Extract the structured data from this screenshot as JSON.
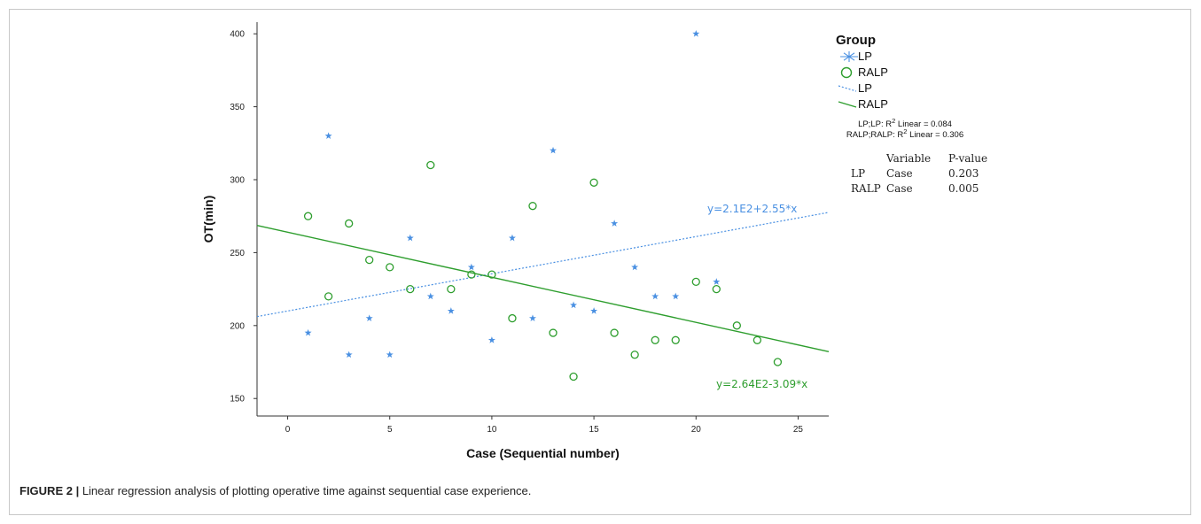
{
  "figure": {
    "caption_label": "FIGURE 2 |",
    "caption_text": " Linear regression analysis of plotting operative time against sequential case experience."
  },
  "chart_data": {
    "type": "scatter",
    "xlabel": "Case (Sequential number)",
    "ylabel": "OT(min)",
    "xlim": [
      -1.5,
      26.5
    ],
    "ylim": [
      138,
      408
    ],
    "xticks": [
      0,
      5,
      10,
      15,
      20,
      25
    ],
    "yticks": [
      150,
      200,
      250,
      300,
      350,
      400
    ],
    "grid": false,
    "legend": {
      "title": "Group",
      "placement": "right",
      "entries": [
        {
          "label": "LP",
          "marker": "star",
          "color": "#4a90e2"
        },
        {
          "label": "RALP",
          "marker": "circle",
          "color": "#2e9e2e"
        },
        {
          "label": "LP",
          "marker": "dotted-line",
          "color": "#4a90e2"
        },
        {
          "label": "RALP",
          "marker": "solid-line",
          "color": "#2e9e2e"
        }
      ]
    },
    "r2_notes": [
      {
        "prefix": "LP;LP: R",
        "sup": "2",
        "suffix": " Linear = 0.084"
      },
      {
        "prefix": "RALP;RALP: R",
        "sup": "2",
        "suffix": " Linear = 0.306"
      }
    ],
    "pvalue_table": {
      "headers": [
        "",
        "Variable",
        "P-value"
      ],
      "rows": [
        [
          "LP",
          "Case",
          "0.203"
        ],
        [
          "RALP",
          "Case",
          "0.005"
        ]
      ]
    },
    "series": [
      {
        "name": "LP",
        "marker": "star",
        "color": "#4a90e2",
        "points": [
          [
            1,
            195
          ],
          [
            2,
            330
          ],
          [
            3,
            180
          ],
          [
            4,
            205
          ],
          [
            5,
            180
          ],
          [
            6,
            260
          ],
          [
            7,
            220
          ],
          [
            8,
            210
          ],
          [
            9,
            240
          ],
          [
            10,
            190
          ],
          [
            11,
            260
          ],
          [
            12,
            205
          ],
          [
            13,
            320
          ],
          [
            14,
            214
          ],
          [
            15,
            210
          ],
          [
            16,
            270
          ],
          [
            17,
            240
          ],
          [
            18,
            220
          ],
          [
            19,
            220
          ],
          [
            20,
            400
          ],
          [
            21,
            230
          ]
        ],
        "fit": {
          "intercept": 210,
          "slope": 2.55,
          "style": "dotted",
          "equation": "y=2.1E2+2.55*x"
        }
      },
      {
        "name": "RALP",
        "marker": "circle",
        "color": "#2e9e2e",
        "points": [
          [
            1,
            275
          ],
          [
            2,
            220
          ],
          [
            3,
            270
          ],
          [
            4,
            245
          ],
          [
            5,
            240
          ],
          [
            6,
            225
          ],
          [
            7,
            310
          ],
          [
            8,
            225
          ],
          [
            9,
            235
          ],
          [
            10,
            235
          ],
          [
            11,
            205
          ],
          [
            12,
            282
          ],
          [
            13,
            195
          ],
          [
            14,
            165
          ],
          [
            15,
            298
          ],
          [
            16,
            195
          ],
          [
            17,
            180
          ],
          [
            18,
            190
          ],
          [
            19,
            190
          ],
          [
            20,
            230
          ],
          [
            21,
            225
          ],
          [
            22,
            200
          ],
          [
            23,
            190
          ],
          [
            24,
            175
          ]
        ],
        "fit": {
          "intercept": 264,
          "slope": -3.09,
          "style": "solid",
          "equation": "y=2.64E2-3.09*x"
        }
      }
    ]
  }
}
